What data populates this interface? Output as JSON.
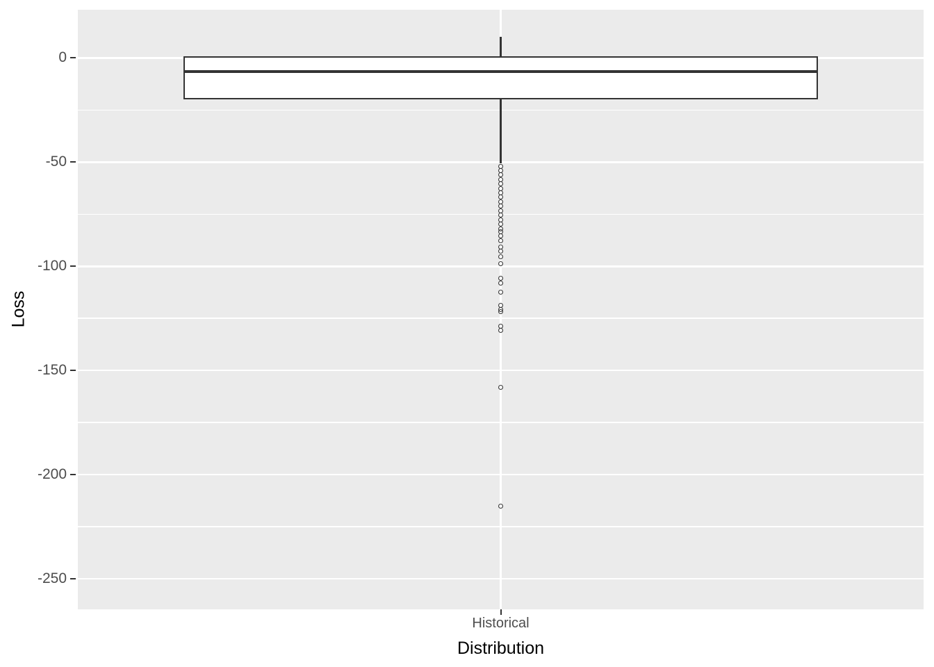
{
  "figure": {
    "colors": {
      "outer_bg": "#FFFFFF",
      "panel_bg": "#EBEBEB",
      "grid": "#FFFFFF",
      "box_border": "#333333",
      "box_fill": "#FFFFFF",
      "median": "#333333",
      "whisker": "#333333",
      "outlier": "#333333",
      "axis_text": "#4D4D4D",
      "axis_title": "#000000",
      "tick_mark": "#333333"
    }
  },
  "chart_data": {
    "type": "boxplot",
    "title": "",
    "xlabel": "Distribution",
    "ylabel": "Loss",
    "categories": [
      "Historical"
    ],
    "series": [
      {
        "name": "Historical",
        "stats": {
          "upper_whisker": 10,
          "q3": 0.5,
          "median": -6.6,
          "q1": -19.7,
          "lower_whisker": -50.5
        },
        "outliers": [
          -52.0,
          -54.0,
          -56.2,
          -58.3,
          -60.5,
          -62.6,
          -64.8,
          -66.9,
          -69.1,
          -71.2,
          -73.4,
          -75.5,
          -77.7,
          -79.8,
          -82.0,
          -83.3,
          -85.3,
          -87.6,
          -90.6,
          -92.8,
          -95.3,
          -98.6,
          -105.8,
          -108.0,
          -112.5,
          -118.6,
          -120.7,
          -121.9,
          -128.6,
          -130.9,
          -158.1,
          -215.0
        ]
      }
    ],
    "y_ticks": [
      0,
      -50,
      -100,
      -150,
      -200,
      -250
    ],
    "y_tick_labels": [
      "0",
      "-50",
      "-100",
      "-150",
      "-200",
      "-250"
    ],
    "y_minor": [
      -25,
      -75,
      -125,
      -175,
      -225
    ],
    "ylim": [
      -264.6,
      23.1
    ],
    "grid": true,
    "legend": false,
    "box_width_frac": 0.75
  }
}
